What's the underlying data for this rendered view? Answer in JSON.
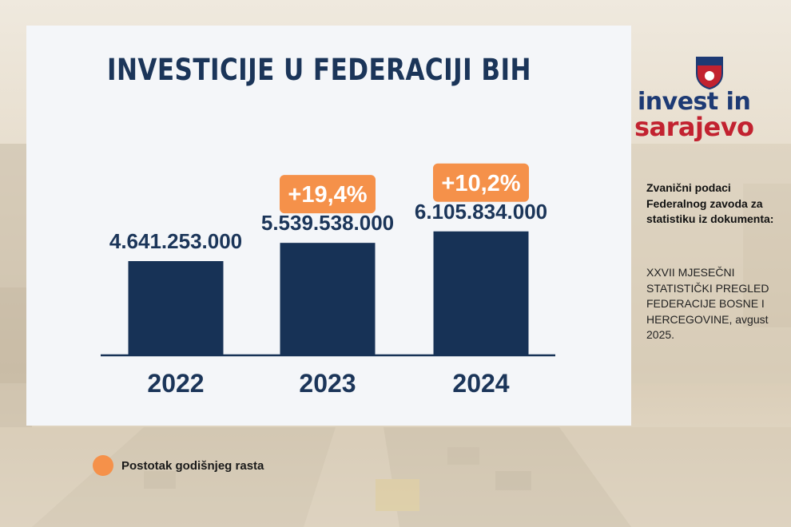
{
  "title": "INVESTICIJE U FEDERACIJI BIH",
  "logo": {
    "line1": "invest in",
    "line2": "sarajevo"
  },
  "source": {
    "heading": "Zvanični podaci Federalnog zavoda za statistiku iz dokumenta:",
    "document": "XXVII MJESEČNI STATISTIČKI PREGLED FEDERACIJE BOSNE I HERCEGOVINE, avgust 2025."
  },
  "legend": {
    "label": "Postotak godišnjeg rasta",
    "color": "#f5914a"
  },
  "colors": {
    "bar": "#173256",
    "accent": "#f5914a",
    "axis": "#173256",
    "text": "#1b3559"
  },
  "chart_data": {
    "type": "bar",
    "title": "INVESTICIJE U FEDERACIJI BIH",
    "categories": [
      "2022",
      "2023",
      "2024"
    ],
    "values": [
      4641253000,
      5539538000,
      6105834000
    ],
    "value_labels": [
      "4.641.253.000",
      "5.539.538.000",
      "6.105.834.000"
    ],
    "growth_labels": [
      "",
      "+19,4%",
      "+10,2%"
    ],
    "xlabel": "",
    "ylabel": "",
    "grid": false,
    "legend": "bottom-left"
  }
}
